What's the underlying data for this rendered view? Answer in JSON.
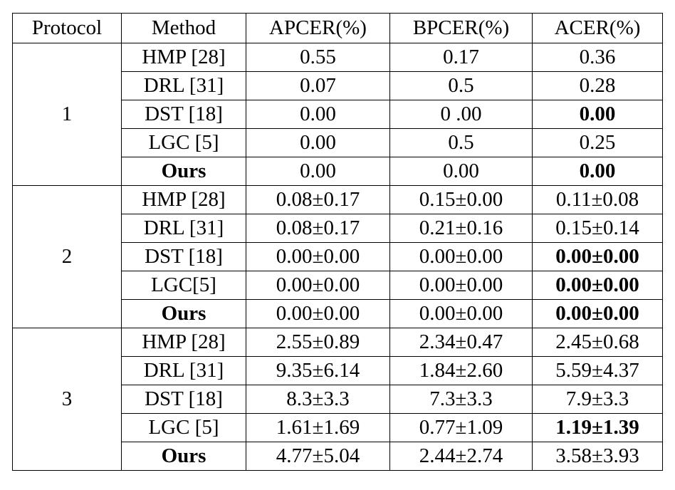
{
  "header": [
    "Protocol",
    "Method",
    "APCER(%)",
    "BPCER(%)",
    "ACER(%)"
  ],
  "groups": [
    {
      "protocol": "1",
      "rows": [
        [
          "HMP [28]",
          "0.55",
          "0.17",
          "0.36"
        ],
        [
          "DRL [31]",
          "0.07",
          "0.5",
          "0.28"
        ],
        [
          "DST [18]",
          "0.00",
          "0 .00",
          "0.00"
        ],
        [
          "LGC [5]",
          "0.00",
          "0.5",
          "0.25"
        ],
        [
          "Ours",
          "0.00",
          "0.00",
          "0.00"
        ]
      ],
      "bold": [
        [
          2,
          3
        ],
        [
          4,
          0
        ],
        [
          4,
          3
        ]
      ]
    },
    {
      "protocol": "2",
      "rows": [
        [
          "HMP [28]",
          "0.08±0.17",
          "0.15±0.00",
          "0.11±0.08"
        ],
        [
          "DRL [31]",
          "0.08±0.17",
          "0.21±0.16",
          "0.15±0.14"
        ],
        [
          "DST [18]",
          "0.00±0.00",
          "0.00±0.00",
          "0.00±0.00"
        ],
        [
          "LGC[5]",
          "0.00±0.00",
          "0.00±0.00",
          "0.00±0.00"
        ],
        [
          "Ours",
          "0.00±0.00",
          "0.00±0.00",
          "0.00±0.00"
        ]
      ],
      "bold": [
        [
          2,
          3
        ],
        [
          3,
          3
        ],
        [
          4,
          0
        ],
        [
          4,
          3
        ]
      ]
    },
    {
      "protocol": "3",
      "rows": [
        [
          "HMP [28]",
          "2.55±0.89",
          "2.34±0.47",
          "2.45±0.68"
        ],
        [
          "DRL [31]",
          "9.35±6.14",
          "1.84±2.60",
          "5.59±4.37"
        ],
        [
          "DST [18]",
          "8.3±3.3",
          "7.3±3.3",
          "7.9±3.3"
        ],
        [
          "LGC [5]",
          "1.61±1.69",
          "0.77±1.09",
          "1.19±1.39"
        ],
        [
          "Ours",
          "4.77±5.04",
          "2.44±2.74",
          "3.58±3.93"
        ]
      ],
      "bold": [
        [
          3,
          3
        ],
        [
          4,
          0
        ]
      ]
    }
  ]
}
